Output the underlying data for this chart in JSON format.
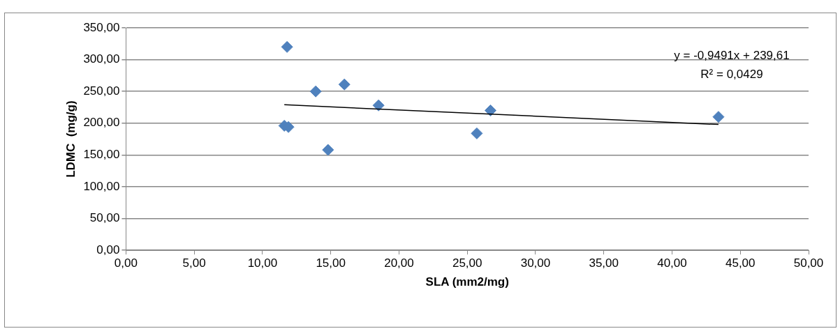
{
  "chart_data": {
    "type": "scatter",
    "xlabel": "SLA (mm2/mg)",
    "ylabel": "LDMC  (mg/g)",
    "series": [
      {
        "color": "#4f81bd",
        "marker": "diamond",
        "x": [
          11.8,
          13.9,
          16.0,
          18.5,
          11.6,
          11.9,
          14.8,
          25.7,
          26.7,
          43.4
        ],
        "values": [
          320,
          250,
          261,
          228,
          196,
          194,
          158,
          184,
          220,
          210
        ]
      },
      {
        "type": "line",
        "color": "#000000",
        "marker": "none",
        "x": [
          11.6,
          43.4
        ],
        "values": [
          229,
          198
        ]
      }
    ],
    "xlim": [
      0,
      50
    ],
    "xticks": [
      {
        "value": 0,
        "label": "0,00"
      },
      {
        "value": 5,
        "label": "5,00"
      },
      {
        "value": 10,
        "label": "10,00"
      },
      {
        "value": 15,
        "label": "15,00"
      },
      {
        "value": 20,
        "label": "20,00"
      },
      {
        "value": 25,
        "label": "25,00"
      },
      {
        "value": 30,
        "label": "30,00"
      },
      {
        "value": 35,
        "label": "35,00"
      },
      {
        "value": 40,
        "label": "40,00"
      },
      {
        "value": 45,
        "label": "45,00"
      },
      {
        "value": 50,
        "label": "50,00"
      }
    ],
    "ylim": [
      0,
      350
    ],
    "yticks": [
      {
        "value": 0,
        "label": "0,00"
      },
      {
        "value": 50,
        "label": "50,00"
      },
      {
        "value": 100,
        "label": "100,00"
      },
      {
        "value": 150,
        "label": "150,00"
      },
      {
        "value": 200,
        "label": "200,00"
      },
      {
        "value": 250,
        "label": "250,00"
      },
      {
        "value": 300,
        "label": "300,00"
      },
      {
        "value": 350,
        "label": "350,00"
      }
    ],
    "annotations": [
      "y = -0,9491x + 239,61",
      "R² = 0,0429"
    ],
    "grid": "y",
    "legend": false
  }
}
